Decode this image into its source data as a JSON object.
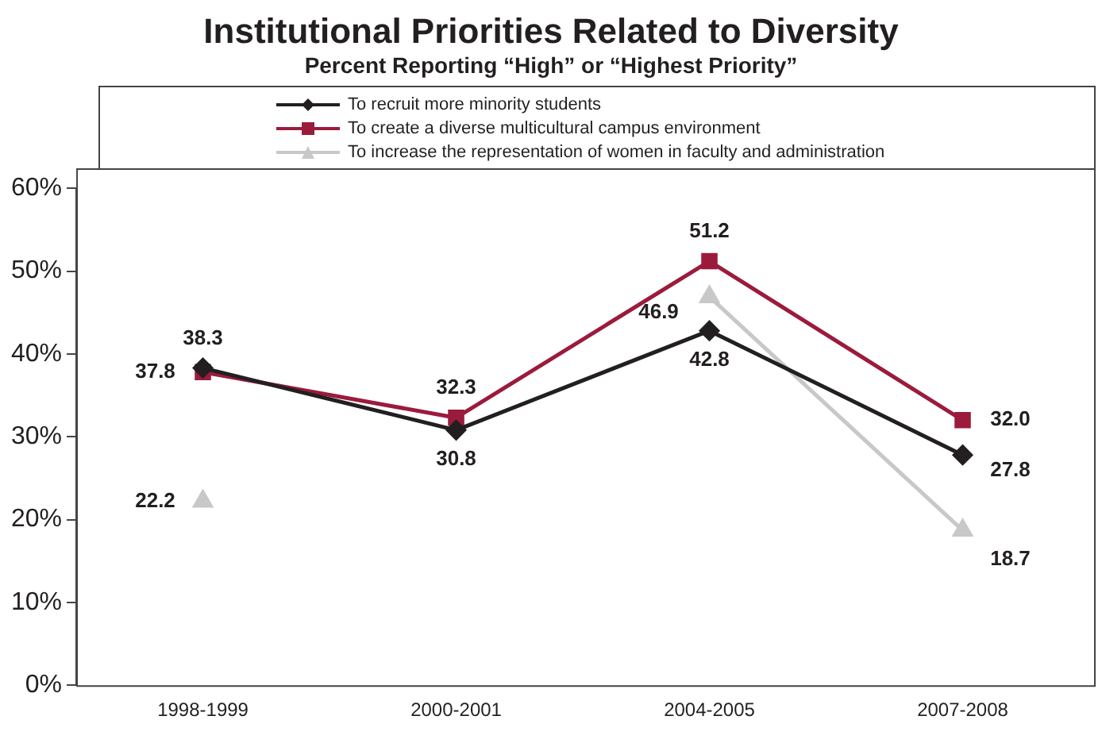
{
  "chart_data": {
    "type": "line",
    "title": "Institutional Priorities Related to Diversity",
    "subtitle": "Percent Reporting “High” or “Highest Priority”",
    "categories": [
      "1998-1999",
      "2000-2001",
      "2004-2005",
      "2007-2008"
    ],
    "series": [
      {
        "name": "To recruit more minority students",
        "color": "#231f20",
        "marker": "diamond",
        "values": [
          38.3,
          30.8,
          42.8,
          27.8
        ],
        "value_labels": [
          "38.3",
          "30.8",
          "42.8",
          "27.8"
        ]
      },
      {
        "name": "To create a diverse multicultural campus environment",
        "color": "#9b1b3c",
        "marker": "square",
        "values": [
          37.8,
          32.3,
          51.2,
          32.0
        ],
        "value_labels": [
          "37.8",
          "32.3",
          "51.2",
          "32.0"
        ]
      },
      {
        "name": "To increase the representation of women in faculty and administration",
        "color": "#c8c8c8",
        "marker": "triangle",
        "values": [
          22.2,
          null,
          46.9,
          18.7
        ],
        "value_labels": [
          "22.2",
          null,
          "46.9",
          "18.7"
        ]
      }
    ],
    "ylim": [
      0,
      60
    ],
    "yticks": [
      {
        "value": 0,
        "label": "0%"
      },
      {
        "value": 10,
        "label": "10%"
      },
      {
        "value": 20,
        "label": "20%"
      },
      {
        "value": 30,
        "label": "30%"
      },
      {
        "value": 40,
        "label": "40%"
      },
      {
        "value": 50,
        "label": "50%"
      },
      {
        "value": 60,
        "label": "60%"
      }
    ],
    "grid": false,
    "legend": "top",
    "line_style": "solid"
  }
}
